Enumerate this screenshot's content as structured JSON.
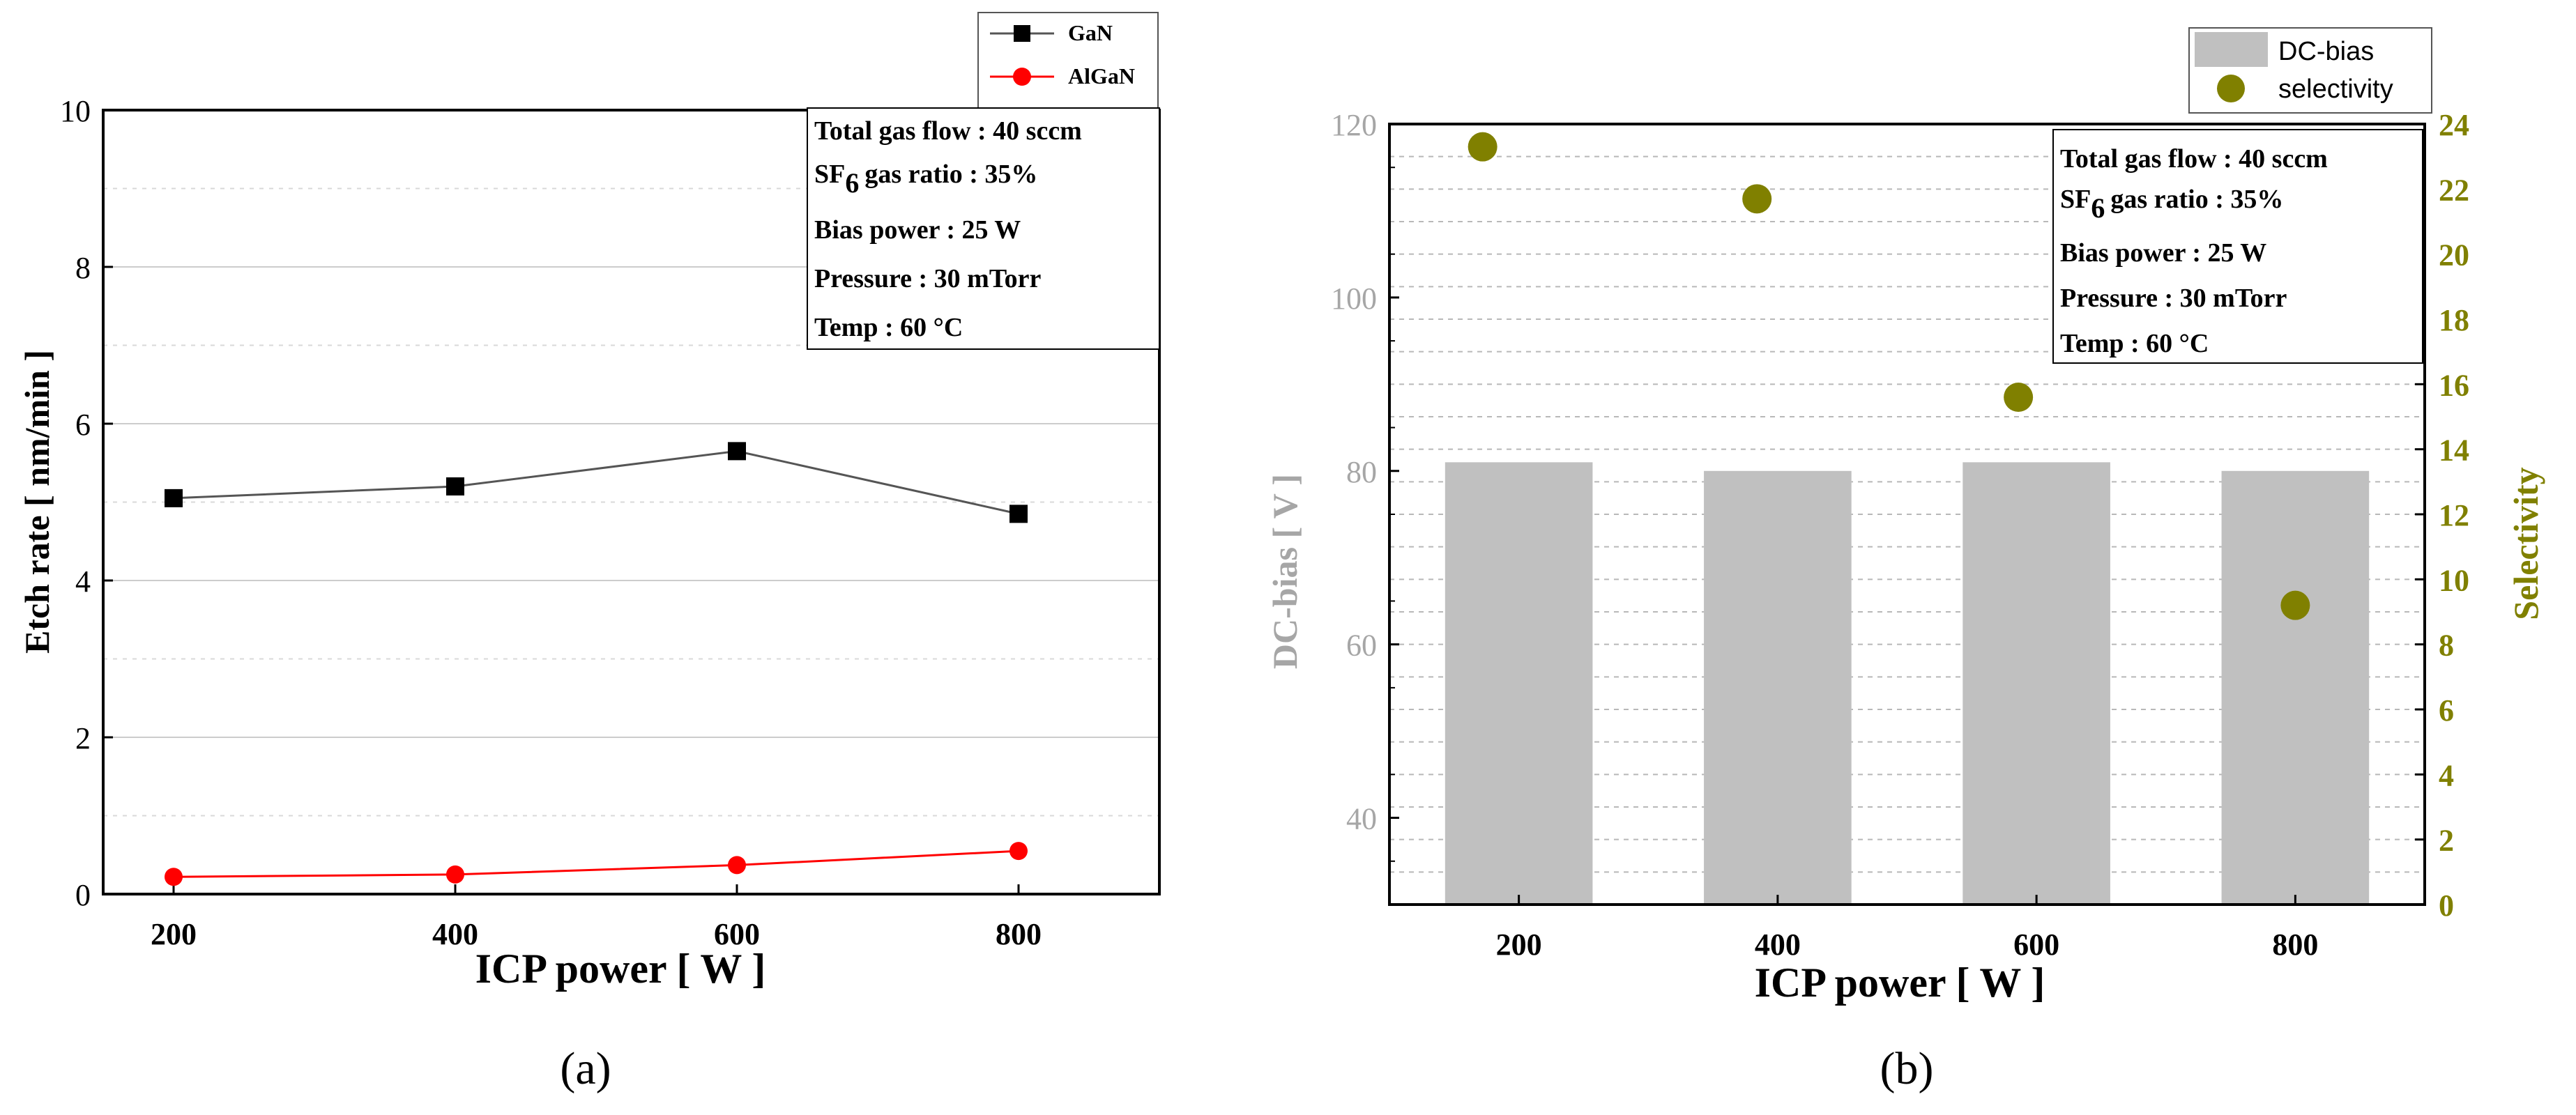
{
  "chart_data": [
    {
      "id": "a",
      "type": "line",
      "caption": "(a)",
      "title": "",
      "xlabel": "ICP power [ W ]",
      "ylabel": "Etch rate [ nm/min ]",
      "x": [
        200,
        400,
        600,
        800
      ],
      "xticks": [
        "200",
        "400",
        "600",
        "800"
      ],
      "xlim": [
        150,
        900
      ],
      "ylim": [
        0,
        10
      ],
      "yticks": [
        "0",
        "2",
        "4",
        "6",
        "8",
        "10"
      ],
      "grid": true,
      "legend_position": "top-right-outside",
      "series": [
        {
          "name": "GaN",
          "marker": "square",
          "color": "#000000",
          "line_color": "#555555",
          "values": [
            5.05,
            5.2,
            5.65,
            4.85
          ]
        },
        {
          "name": "AlGaN",
          "marker": "circle",
          "color": "#ff0000",
          "line_color": "#ff0000",
          "values": [
            0.22,
            0.25,
            0.37,
            0.55
          ]
        }
      ],
      "annotation": {
        "lines": [
          "Total gas flow : 40 sccm",
          "gas ratio : 35%",
          "Bias power : 25 W",
          "Pressure : 30 mTorr",
          "Temp : 60 °C"
        ],
        "sf_main": "SF",
        "sf_sub": "6"
      }
    },
    {
      "id": "b",
      "type": "bar",
      "caption": "(b)",
      "title": "",
      "xlabel": "ICP power [ W ]",
      "ylabel": "DC-bias [ V ]",
      "y2label": "Selectivity",
      "categories": [
        "200",
        "400",
        "600",
        "800"
      ],
      "ylim": [
        30,
        120
      ],
      "yticks": [
        "40",
        "60",
        "80",
        "100",
        "120"
      ],
      "y2lim": [
        0,
        24
      ],
      "y2ticks": [
        "0",
        "2",
        "4",
        "6",
        "8",
        "10",
        "12",
        "14",
        "16",
        "18",
        "20",
        "22",
        "24"
      ],
      "grid": true,
      "legend_position": "top-right-outside",
      "series": [
        {
          "name": "DC-bias",
          "kind": "bar",
          "color": "#c0c0c0",
          "axis": "left",
          "values": [
            81,
            80,
            81,
            80
          ]
        },
        {
          "name": "selectivity",
          "kind": "scatter",
          "color": "#808000",
          "axis": "right",
          "values": [
            23.3,
            21.7,
            15.6,
            9.2
          ]
        }
      ],
      "annotation": {
        "lines": [
          "Total gas flow : 40 sccm",
          "gas ratio : 35%",
          "Bias power : 25 W",
          "Pressure : 30 mTorr",
          "Temp : 60 °C"
        ],
        "sf_main": "SF",
        "sf_sub": "6"
      }
    }
  ]
}
